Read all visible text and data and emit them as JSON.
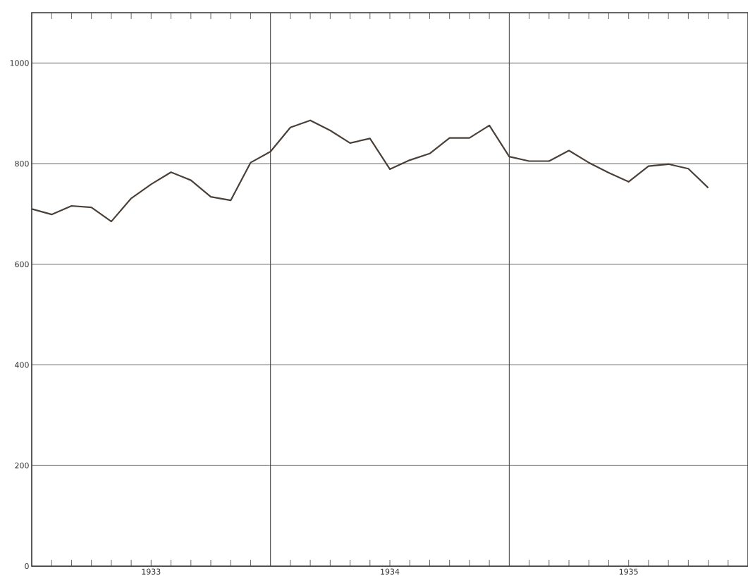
{
  "chart_data": {
    "type": "line",
    "x": [
      "1933-01",
      "1933-02",
      "1933-03",
      "1933-04",
      "1933-05",
      "1933-06",
      "1933-07",
      "1933-08",
      "1933-09",
      "1933-10",
      "1933-11",
      "1933-12",
      "1934-01",
      "1934-02",
      "1934-03",
      "1934-04",
      "1934-05",
      "1934-06",
      "1934-07",
      "1934-08",
      "1934-09",
      "1934-10",
      "1934-11",
      "1934-12",
      "1935-01",
      "1935-02",
      "1935-03",
      "1935-04",
      "1935-05",
      "1935-06",
      "1935-07",
      "1935-08",
      "1935-09",
      "1935-10",
      "1935-11"
    ],
    "values": [
      710,
      699,
      716,
      713,
      685,
      731,
      759,
      783,
      767,
      734,
      727,
      802,
      824,
      872,
      886,
      866,
      841,
      850,
      789,
      807,
      820,
      851,
      851,
      876,
      814,
      805,
      805,
      826,
      802,
      782,
      764,
      795,
      799,
      790,
      752
    ],
    "color": "#4a403a",
    "xlim": [
      "1933-01",
      "1936-01"
    ],
    "ylim": [
      0,
      1100
    ],
    "xticks": [
      {
        "value": "1933-02",
        "label": null
      },
      {
        "value": "1933-03",
        "label": null
      },
      {
        "value": "1933-04",
        "label": null
      },
      {
        "value": "1933-05",
        "label": null
      },
      {
        "value": "1933-06",
        "label": null
      },
      {
        "value": "1933-07",
        "label": "1933"
      },
      {
        "value": "1933-08",
        "label": null
      },
      {
        "value": "1933-09",
        "label": null
      },
      {
        "value": "1933-10",
        "label": null
      },
      {
        "value": "1933-11",
        "label": null
      },
      {
        "value": "1933-12",
        "label": null
      },
      {
        "value": "1934-02",
        "label": null
      },
      {
        "value": "1934-03",
        "label": null
      },
      {
        "value": "1934-04",
        "label": null
      },
      {
        "value": "1934-05",
        "label": null
      },
      {
        "value": "1934-06",
        "label": null
      },
      {
        "value": "1934-07",
        "label": "1934"
      },
      {
        "value": "1934-08",
        "label": null
      },
      {
        "value": "1934-09",
        "label": null
      },
      {
        "value": "1934-10",
        "label": null
      },
      {
        "value": "1934-11",
        "label": null
      },
      {
        "value": "1934-12",
        "label": null
      },
      {
        "value": "1935-02",
        "label": null
      },
      {
        "value": "1935-03",
        "label": null
      },
      {
        "value": "1935-04",
        "label": null
      },
      {
        "value": "1935-05",
        "label": null
      },
      {
        "value": "1935-06",
        "label": null
      },
      {
        "value": "1935-07",
        "label": "1935"
      },
      {
        "value": "1935-08",
        "label": null
      },
      {
        "value": "1935-09",
        "label": null
      },
      {
        "value": "1935-10",
        "label": null
      },
      {
        "value": "1935-11",
        "label": null
      },
      {
        "value": "1935-12",
        "label": null
      }
    ],
    "yticks": [
      0,
      200,
      400,
      600,
      800,
      1000
    ],
    "grid": "y",
    "ref_lines": [
      {
        "axis": "x",
        "value": "1934-01"
      },
      {
        "axis": "x",
        "value": "1935-01"
      }
    ]
  }
}
